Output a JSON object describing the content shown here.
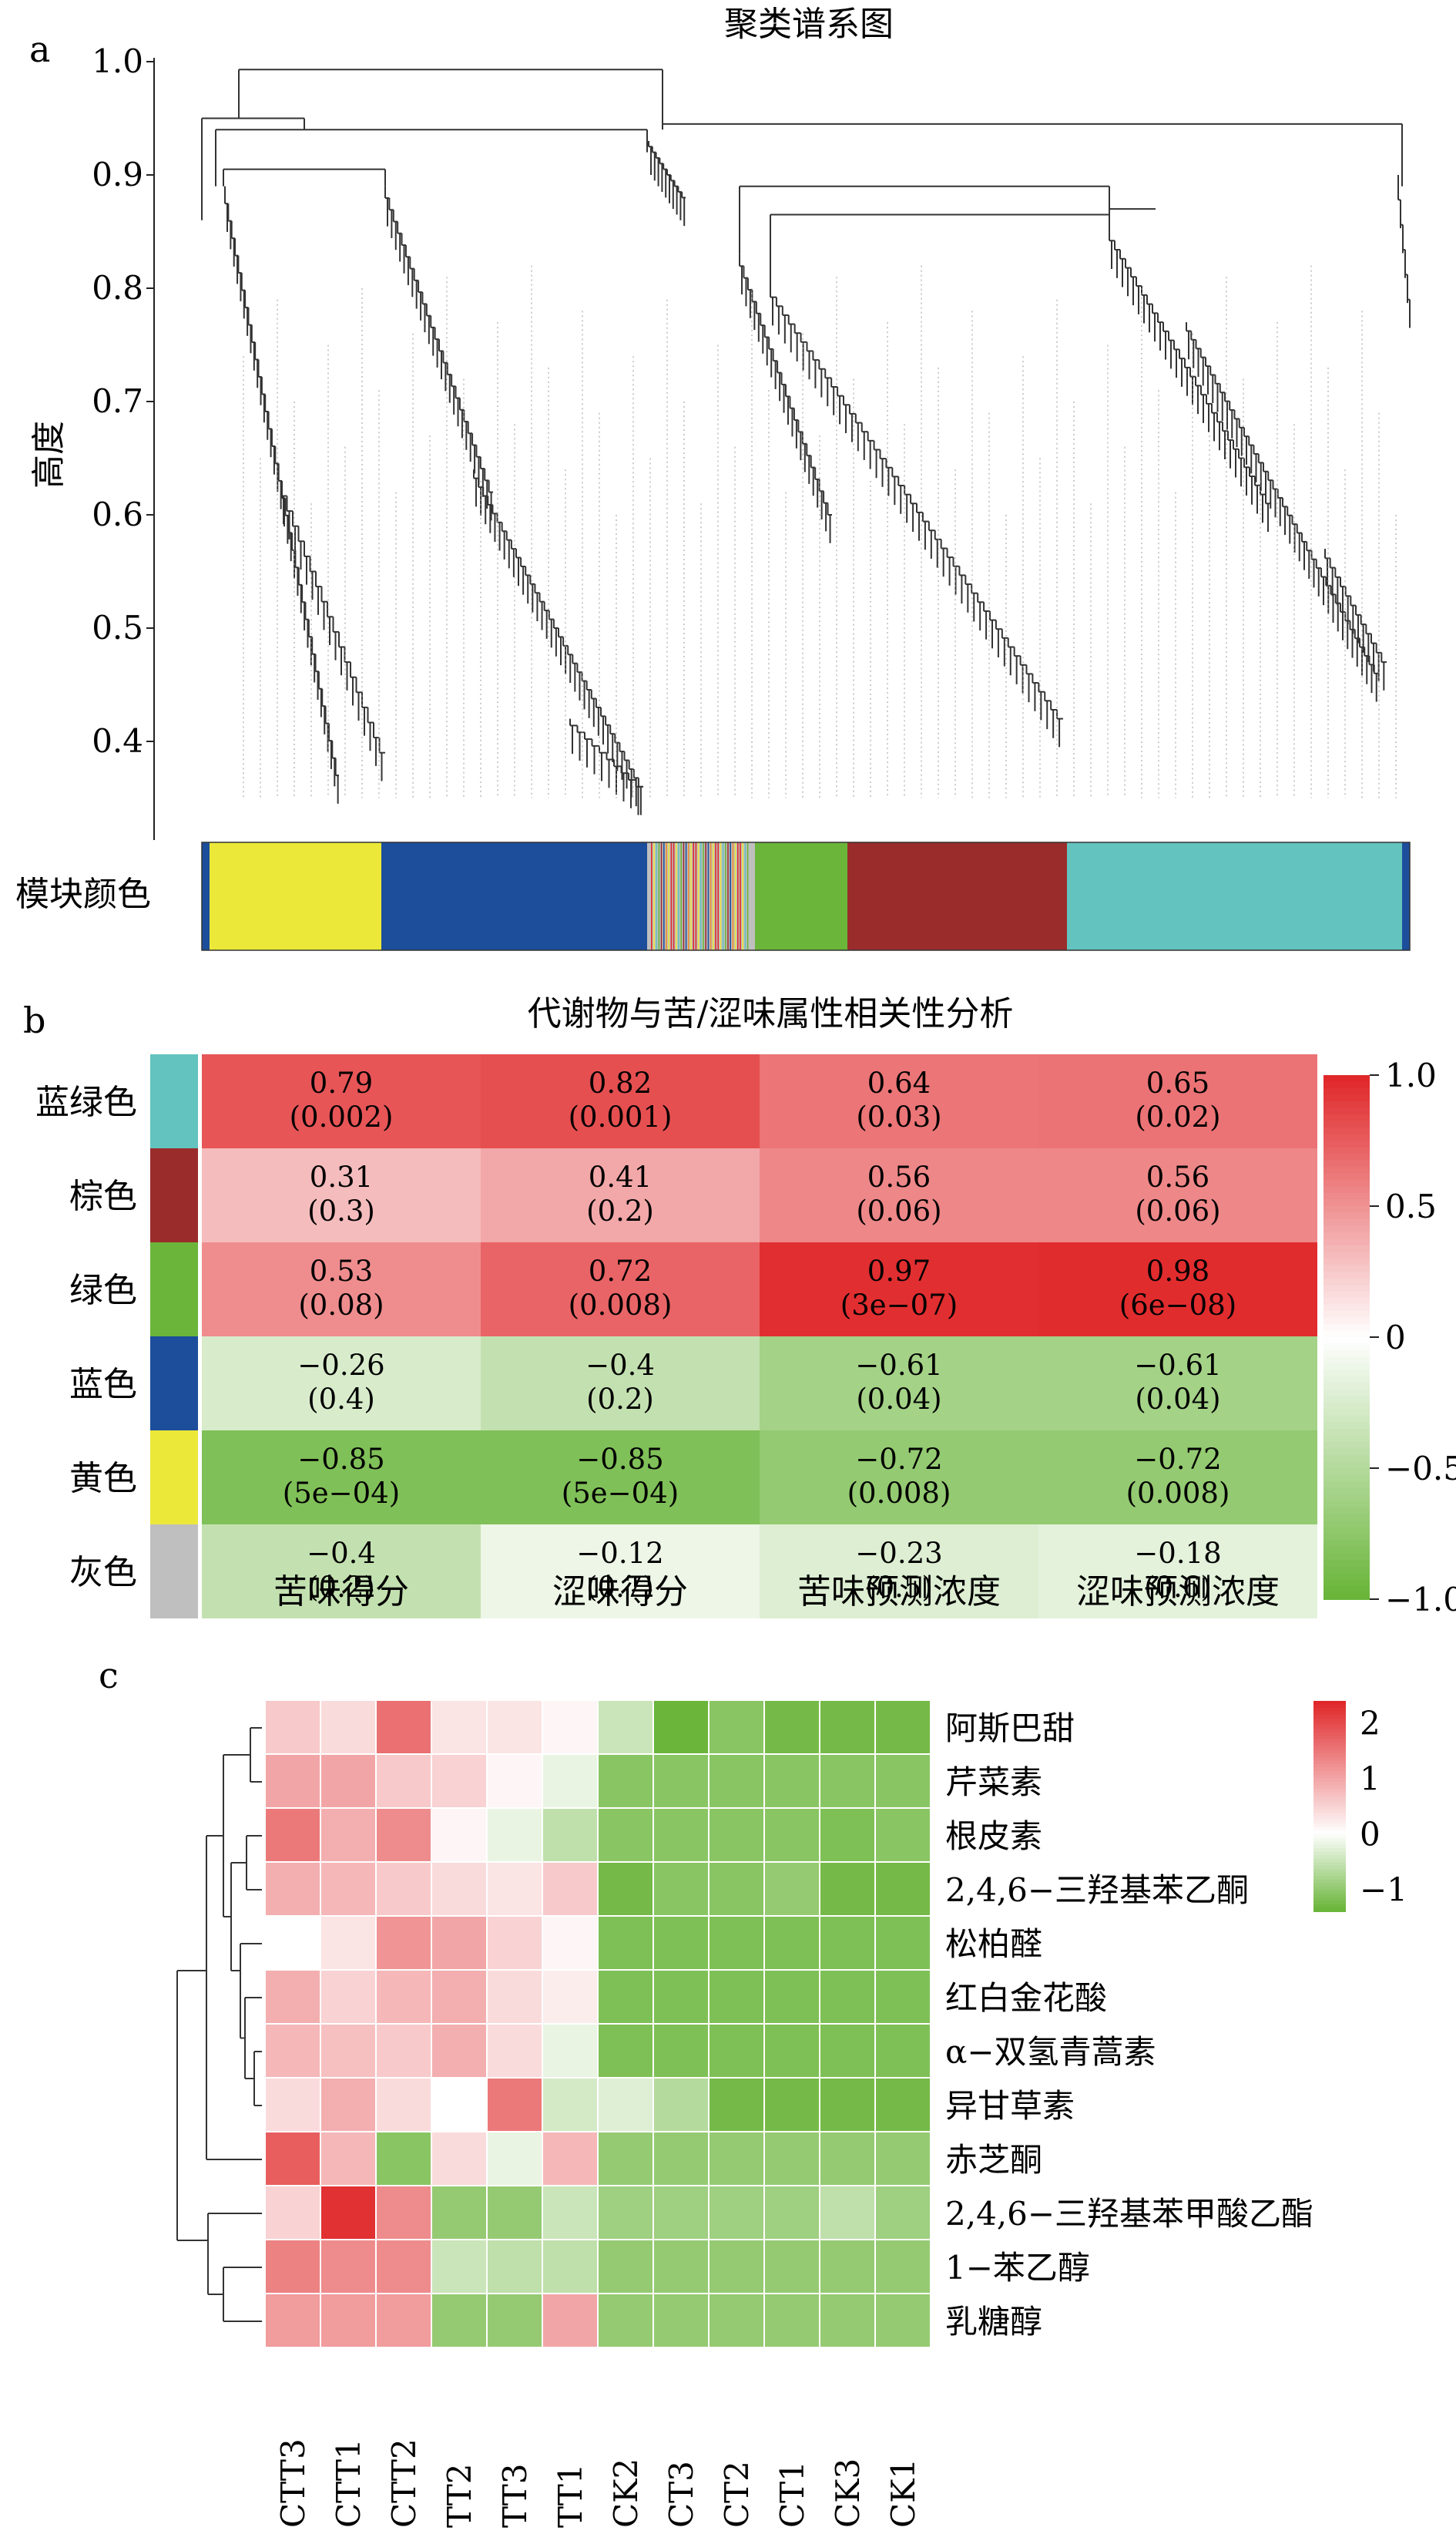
{
  "panels": {
    "a": "a",
    "b": "b",
    "c": "c"
  },
  "colors": {
    "turquoise": "#63c3be",
    "brown": "#9a2c2c",
    "green": "#6ab53a",
    "blue": "#1c4e9b",
    "yellow": "#ece83a",
    "grey": "#bfbfbf",
    "red": "#e0282a",
    "white": "#ffffff"
  },
  "chart_data": [
    {
      "type": "dendrogram",
      "title": "聚类谱系图",
      "ylabel": "高度",
      "ylim": [
        0.35,
        1.0
      ],
      "yticks": [
        "1.0",
        "0.9",
        "0.8",
        "0.7",
        "0.6",
        "0.5",
        "0.4"
      ],
      "color_bar_label": "模块颜色",
      "module_order": [
        "blue",
        "yellow",
        "blue",
        "grey",
        "green",
        "brown",
        "turquoise",
        "blue"
      ]
    },
    {
      "type": "heatmap",
      "title": "代谢物与苦/涩味属性相关性分析",
      "rows": [
        "蓝绿色",
        "棕色",
        "绿色",
        "蓝色",
        "黄色",
        "灰色"
      ],
      "row_colors": [
        "#63c3be",
        "#9a2c2c",
        "#6ab53a",
        "#1c4e9b",
        "#ece83a",
        "#bfbfbf"
      ],
      "columns": [
        "苦味得分",
        "涩味得分",
        "苦味预测浓度",
        "涩味预测浓度"
      ],
      "values": [
        [
          0.79,
          0.82,
          0.64,
          0.65
        ],
        [
          0.31,
          0.41,
          0.56,
          0.56
        ],
        [
          0.53,
          0.72,
          0.97,
          0.98
        ],
        [
          -0.26,
          -0.4,
          -0.61,
          -0.61
        ],
        [
          -0.85,
          -0.85,
          -0.72,
          -0.72
        ],
        [
          -0.4,
          -0.12,
          -0.23,
          -0.18
        ]
      ],
      "value_labels": [
        [
          "0.79",
          "0.82",
          "0.64",
          "0.65"
        ],
        [
          "0.31",
          "0.41",
          "0.56",
          "0.56"
        ],
        [
          "0.53",
          "0.72",
          "0.97",
          "0.98"
        ],
        [
          "−0.26",
          "−0.4",
          "−0.61",
          "−0.61"
        ],
        [
          "−0.85",
          "−0.85",
          "−0.72",
          "−0.72"
        ],
        [
          "−0.4",
          "−0.12",
          "−0.23",
          "−0.18"
        ]
      ],
      "p_values": [
        [
          "(0.002)",
          "(0.001)",
          "(0.03)",
          "(0.02)"
        ],
        [
          "(0.3)",
          "(0.2)",
          "(0.06)",
          "(0.06)"
        ],
        [
          "(0.08)",
          "(0.008)",
          "(3e−07)",
          "(6e−08)"
        ],
        [
          "(0.4)",
          "(0.2)",
          "(0.04)",
          "(0.04)"
        ],
        [
          "(5e−04)",
          "(5e−04)",
          "(0.008)",
          "(0.008)"
        ],
        [
          "(0.2)",
          "(0.7)",
          "(0.5)",
          "(0.6)"
        ]
      ],
      "colorbar_ticks": [
        "1.0",
        "0.5",
        "0",
        "−0.5",
        "−1.0"
      ],
      "colorbar_range": [
        -1,
        1
      ]
    },
    {
      "type": "heatmap",
      "rows": [
        "阿斯巴甜",
        "芹菜素",
        "根皮素",
        "2,4,6−三羟基苯乙酮",
        "松柏醛",
        "红白金花酸",
        "α−双氢青蒿素",
        "异甘草素",
        "赤芝酮",
        "2,4,6−三羟基苯甲酸乙酯",
        "1−苯乙醇",
        "乳糖醇"
      ],
      "columns": [
        "CTT3",
        "CTT1",
        "CTT2",
        "TT2",
        "TT3",
        "TT1",
        "CK2",
        "CT3",
        "CT2",
        "CT1",
        "CK3",
        "CK1"
      ],
      "values": [
        [
          0.6,
          0.4,
          1.6,
          0.3,
          0.3,
          0.1,
          -0.5,
          -1.4,
          -1.1,
          -1.3,
          -1.3,
          -1.3
        ],
        [
          1.0,
          1.0,
          0.6,
          0.5,
          0.1,
          -0.2,
          -1.1,
          -1.1,
          -1.1,
          -1.1,
          -1.1,
          -1.1
        ],
        [
          1.5,
          0.9,
          1.3,
          0.1,
          -0.2,
          -0.6,
          -1.1,
          -1.1,
          -1.1,
          -1.1,
          -1.2,
          -1.1
        ],
        [
          0.9,
          0.8,
          0.6,
          0.4,
          0.3,
          0.6,
          -1.3,
          -1.1,
          -1.1,
          -1.0,
          -1.3,
          -1.3
        ],
        [
          0.0,
          0.3,
          1.2,
          1.0,
          0.5,
          0.1,
          -1.2,
          -1.2,
          -1.2,
          -1.2,
          -1.2,
          -1.2
        ],
        [
          0.9,
          0.5,
          0.8,
          0.9,
          0.4,
          0.2,
          -1.2,
          -1.2,
          -1.2,
          -1.2,
          -1.2,
          -1.2
        ],
        [
          0.8,
          0.7,
          0.6,
          0.9,
          0.4,
          -0.2,
          -1.2,
          -1.2,
          -1.2,
          -1.2,
          -1.2,
          -1.2
        ],
        [
          0.4,
          0.9,
          0.4,
          0.0,
          1.5,
          -0.4,
          -0.3,
          -0.7,
          -1.3,
          -1.3,
          -1.3,
          -1.3
        ],
        [
          1.8,
          0.8,
          -1.1,
          0.4,
          -0.2,
          0.8,
          -1.0,
          -1.0,
          -1.0,
          -1.0,
          -1.0,
          -1.0
        ],
        [
          0.5,
          2.3,
          1.3,
          -1.0,
          -1.0,
          -0.5,
          -0.9,
          -0.9,
          -0.9,
          -0.9,
          -0.6,
          -0.9
        ],
        [
          1.4,
          1.3,
          1.3,
          -0.5,
          -0.6,
          -0.6,
          -1.0,
          -1.0,
          -1.0,
          -1.0,
          -1.0,
          -1.0
        ],
        [
          1.1,
          1.1,
          1.1,
          -1.0,
          -1.0,
          1.0,
          -1.0,
          -1.0,
          -1.0,
          -1.0,
          -1.0,
          -1.0
        ]
      ],
      "colorbar_ticks": [
        "2",
        "1",
        "0",
        "−1"
      ],
      "colorbar_range": [
        -1.4,
        2.4
      ]
    }
  ]
}
